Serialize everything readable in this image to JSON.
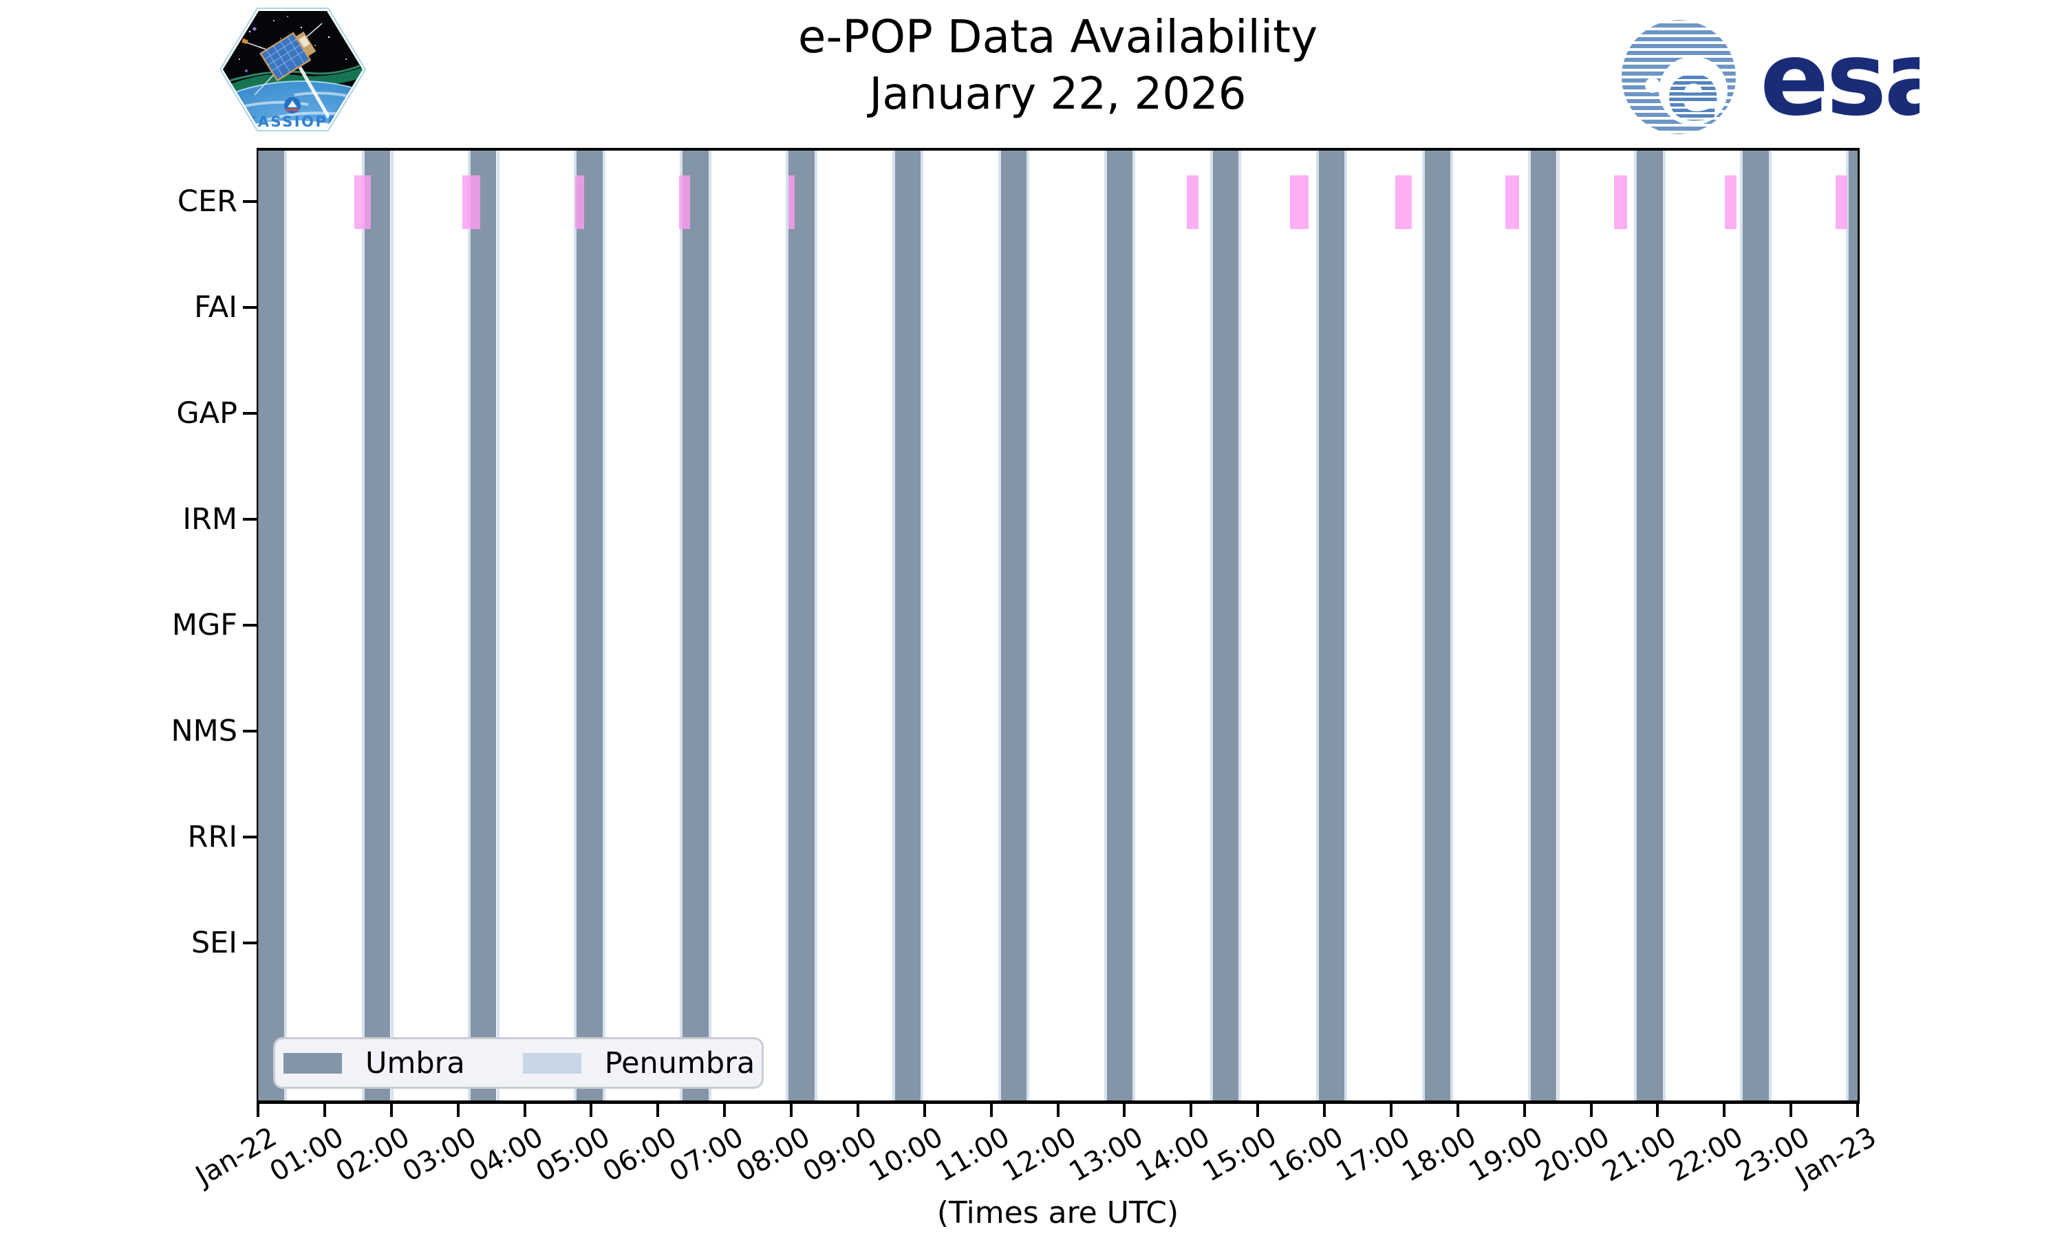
{
  "header": {
    "title": "e-POP Data Availability",
    "subtitle": "January 22, 2026"
  },
  "logos": {
    "cassiope_text": "CASSIOPE",
    "esa_text": "esa"
  },
  "chart_data": {
    "type": "bar",
    "subtype": "timeline-availability",
    "title": "e-POP Data Availability",
    "subtitle": "January 22, 2026",
    "xlabel": "(Times are UTC)",
    "xlim_hours": [
      0,
      24
    ],
    "x_tick_labels": [
      "Jan-22",
      "01:00",
      "02:00",
      "03:00",
      "04:00",
      "05:00",
      "06:00",
      "07:00",
      "08:00",
      "09:00",
      "10:00",
      "11:00",
      "12:00",
      "13:00",
      "14:00",
      "15:00",
      "16:00",
      "17:00",
      "18:00",
      "19:00",
      "20:00",
      "21:00",
      "22:00",
      "23:00",
      "Jan-23"
    ],
    "instruments": [
      "CER",
      "FAI",
      "GAP",
      "IRM",
      "MGF",
      "NMS",
      "RRI",
      "SEI"
    ],
    "grid": false,
    "legend_position": "lower left",
    "legend": [
      {
        "label": "Umbra",
        "color": "#8495A7"
      },
      {
        "label": "Penumbra",
        "color": "#C8D6E5"
      }
    ],
    "colors": {
      "umbra": "#8495A7",
      "penumbra_strip": "rgba(176,196,222,0.5)",
      "cer_data": "rgba(251,158,242,0.82)",
      "spine": "#000000"
    },
    "penumbra_edge_hours": 0.042,
    "umbra_intervals_hours": [
      [
        0.01,
        0.396
      ],
      [
        1.601,
        1.987
      ],
      [
        3.191,
        3.577
      ],
      [
        4.782,
        5.168
      ],
      [
        6.373,
        6.759
      ],
      [
        7.963,
        8.349
      ],
      [
        9.554,
        9.94
      ],
      [
        11.145,
        11.531
      ],
      [
        12.735,
        13.121
      ],
      [
        14.326,
        14.712
      ],
      [
        15.917,
        16.303
      ],
      [
        17.507,
        17.893
      ],
      [
        19.098,
        19.484
      ],
      [
        20.689,
        21.075
      ],
      [
        22.279,
        22.665
      ],
      [
        23.87,
        24.0
      ]
    ],
    "cer_availability_intervals_hours": [
      [
        1.445,
        1.693
      ],
      [
        3.066,
        3.334
      ],
      [
        4.759,
        4.893
      ],
      [
        6.318,
        6.483
      ],
      [
        7.958,
        8.051
      ],
      [
        13.935,
        14.111
      ],
      [
        15.484,
        15.763
      ],
      [
        17.063,
        17.311
      ],
      [
        18.715,
        18.921
      ],
      [
        20.346,
        20.542
      ],
      [
        22.008,
        22.184
      ],
      [
        23.67,
        23.845
      ]
    ]
  }
}
